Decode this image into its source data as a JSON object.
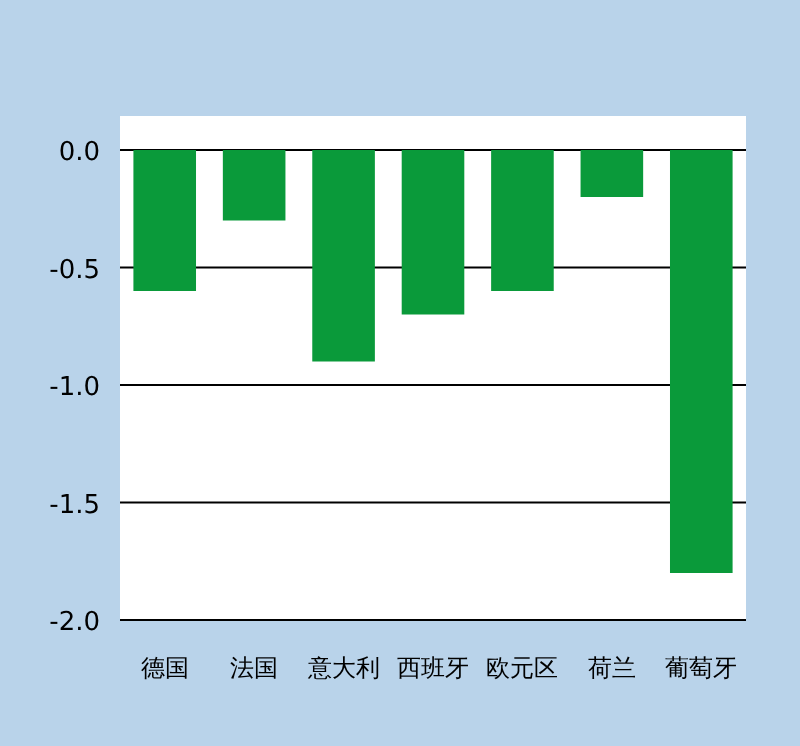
{
  "chart_data": {
    "type": "bar",
    "categories": [
      "德国",
      "法国",
      "意大利",
      "西班牙",
      "欧元区",
      "荷兰",
      "葡萄牙"
    ],
    "values": [
      -0.6,
      -0.3,
      -0.9,
      -0.7,
      -0.6,
      -0.2,
      -1.8
    ],
    "color": "#0a9a3a",
    "ylim": [
      -2.0,
      0.0
    ],
    "yticks": [
      {
        "value": 0,
        "label": "0.0"
      },
      {
        "value": -0.5,
        "label": "-0.5"
      },
      {
        "value": -1,
        "label": "-1.0"
      },
      {
        "value": -1.5,
        "label": "-1.5"
      },
      {
        "value": -2,
        "label": "-2.0"
      }
    ],
    "grid": "y"
  }
}
